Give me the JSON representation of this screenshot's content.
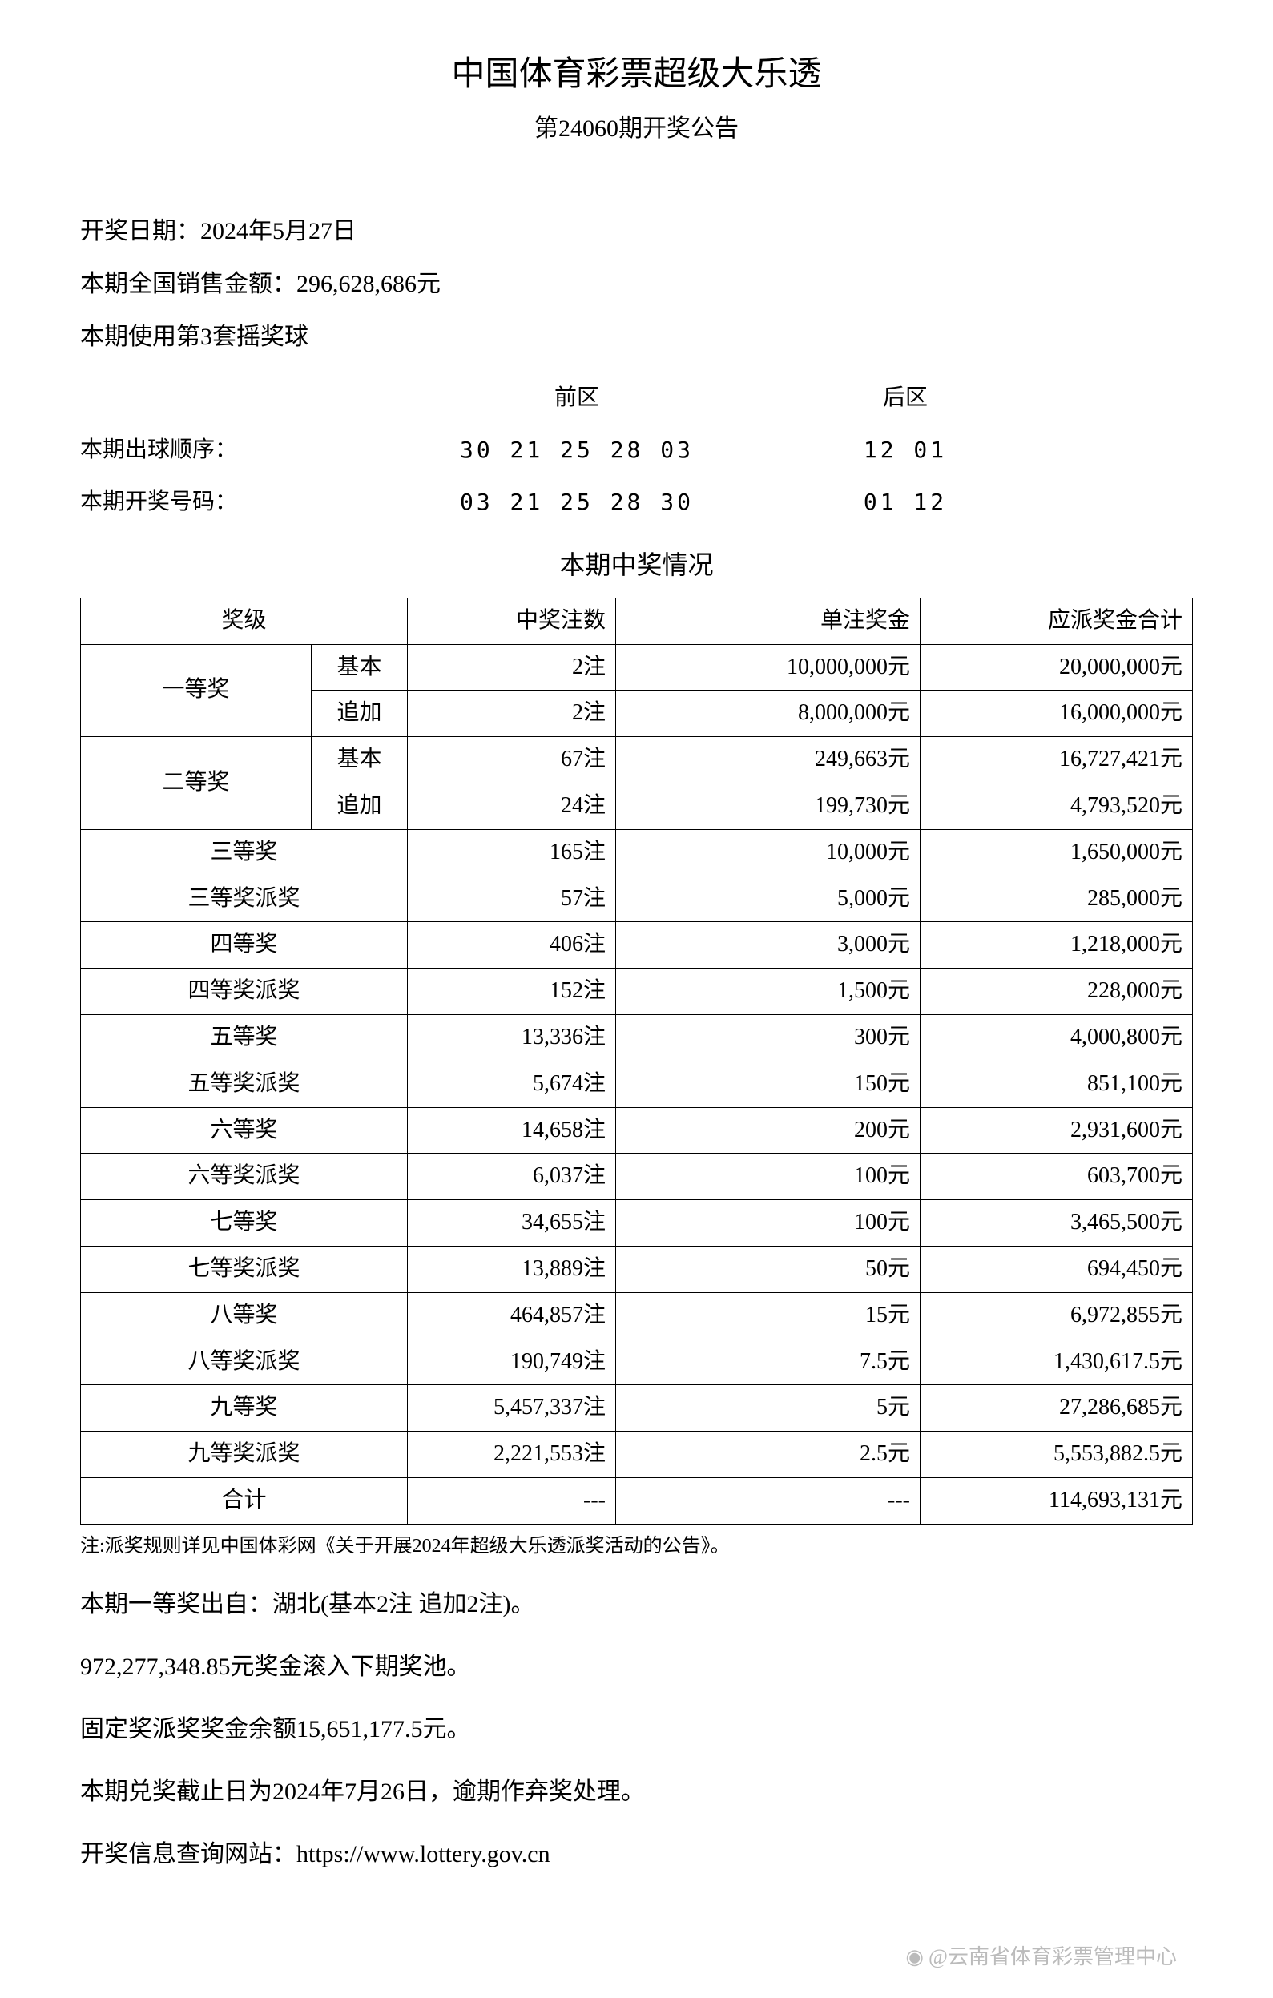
{
  "header": {
    "title_main": "中国体育彩票超级大乐透",
    "title_sub": "第24060期开奖公告"
  },
  "info": {
    "draw_date_label": "开奖日期：",
    "draw_date_value": "2024年5月27日",
    "sales_label": "本期全国销售金额：",
    "sales_value": "296,628,686元",
    "ball_set": "本期使用第3套摇奖球"
  },
  "numbers": {
    "front_label": "前区",
    "back_label": "后区",
    "draw_order_label": "本期出球顺序：",
    "draw_order_front": "30 21 25 28 03",
    "draw_order_back": "12 01",
    "winning_label": "本期开奖号码：",
    "winning_front": "03 21 25 28 30",
    "winning_back": "01 12"
  },
  "prize_section_title": "本期中奖情况",
  "table": {
    "headers": {
      "level": "奖级",
      "count": "中奖注数",
      "amount": "单注奖金",
      "total": "应派奖金合计"
    },
    "grouped_rows": [
      {
        "level": "一等奖",
        "sub_rows": [
          {
            "sub": "基本",
            "count": "2注",
            "amount": "10,000,000元",
            "total": "20,000,000元"
          },
          {
            "sub": "追加",
            "count": "2注",
            "amount": "8,000,000元",
            "total": "16,000,000元"
          }
        ]
      },
      {
        "level": "二等奖",
        "sub_rows": [
          {
            "sub": "基本",
            "count": "67注",
            "amount": "249,663元",
            "total": "16,727,421元"
          },
          {
            "sub": "追加",
            "count": "24注",
            "amount": "199,730元",
            "total": "4,793,520元"
          }
        ]
      }
    ],
    "simple_rows": [
      {
        "level": "三等奖",
        "count": "165注",
        "amount": "10,000元",
        "total": "1,650,000元"
      },
      {
        "level": "三等奖派奖",
        "count": "57注",
        "amount": "5,000元",
        "total": "285,000元"
      },
      {
        "level": "四等奖",
        "count": "406注",
        "amount": "3,000元",
        "total": "1,218,000元"
      },
      {
        "level": "四等奖派奖",
        "count": "152注",
        "amount": "1,500元",
        "total": "228,000元"
      },
      {
        "level": "五等奖",
        "count": "13,336注",
        "amount": "300元",
        "total": "4,000,800元"
      },
      {
        "level": "五等奖派奖",
        "count": "5,674注",
        "amount": "150元",
        "total": "851,100元"
      },
      {
        "level": "六等奖",
        "count": "14,658注",
        "amount": "200元",
        "total": "2,931,600元"
      },
      {
        "level": "六等奖派奖",
        "count": "6,037注",
        "amount": "100元",
        "total": "603,700元"
      },
      {
        "level": "七等奖",
        "count": "34,655注",
        "amount": "100元",
        "total": "3,465,500元"
      },
      {
        "level": "七等奖派奖",
        "count": "13,889注",
        "amount": "50元",
        "total": "694,450元"
      },
      {
        "level": "八等奖",
        "count": "464,857注",
        "amount": "15元",
        "total": "6,972,855元"
      },
      {
        "level": "八等奖派奖",
        "count": "190,749注",
        "amount": "7.5元",
        "total": "1,430,617.5元"
      },
      {
        "level": "九等奖",
        "count": "5,457,337注",
        "amount": "5元",
        "total": "27,286,685元"
      },
      {
        "level": "九等奖派奖",
        "count": "2,221,553注",
        "amount": "2.5元",
        "total": "5,553,882.5元"
      }
    ],
    "total_row": {
      "level": "合计",
      "count": "---",
      "amount": "---",
      "total": "114,693,131元"
    }
  },
  "note": "注:派奖规则详见中国体彩网《关于开展2024年超级大乐透派奖活动的公告》。",
  "footer": {
    "line1": "本期一等奖出自：湖北(基本2注 追加2注)。",
    "line2": "972,277,348.85元奖金滚入下期奖池。",
    "line3": "固定奖派奖奖金余额15,651,177.5元。",
    "line4": "本期兑奖截止日为2024年7月26日，逾期作弃奖处理。",
    "line5": "开奖信息查询网站：https://www.lottery.gov.cn"
  },
  "watermark": "@云南省体育彩票管理中心",
  "styling": {
    "background_color": "#ffffff",
    "text_color": "#000000",
    "border_color": "#000000",
    "watermark_color": "#bbbbbb",
    "title_fontsize": 42,
    "body_fontsize": 28,
    "note_fontsize": 24
  }
}
